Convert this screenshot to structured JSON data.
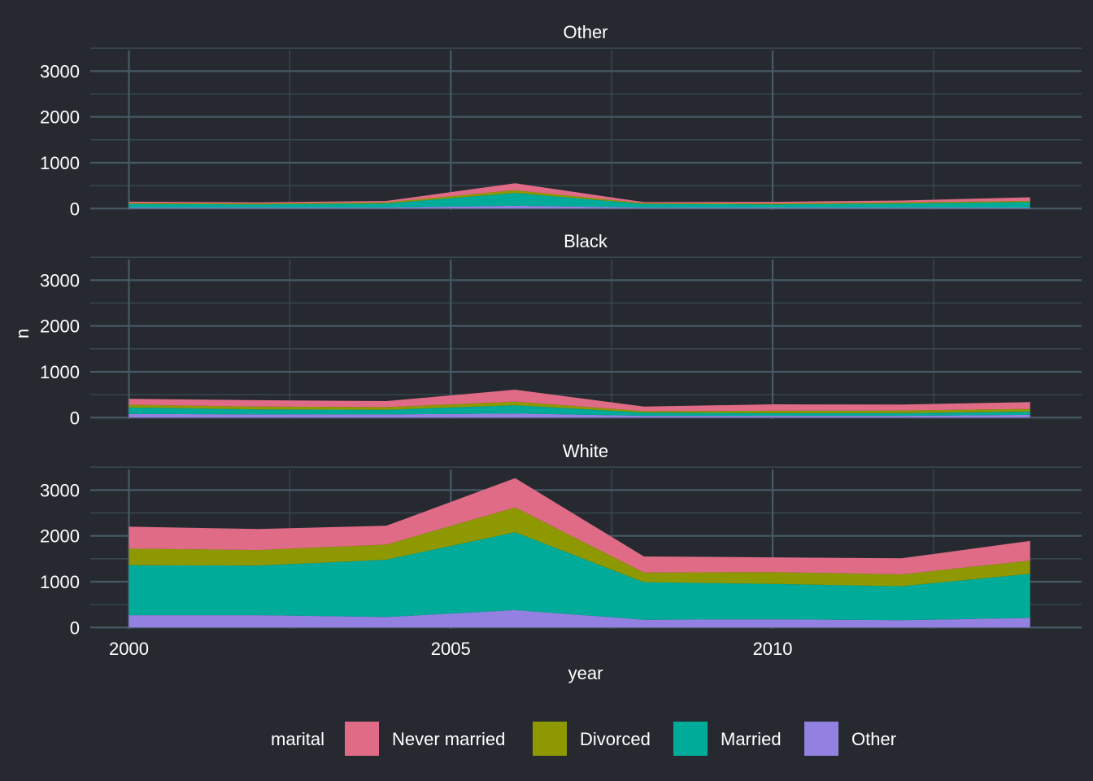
{
  "chart_data": {
    "type": "area",
    "stacked": true,
    "x_label": "year",
    "y_label": "n",
    "x_ticks": [
      2000,
      2005,
      2010
    ],
    "y_ticks": [
      0,
      1000,
      2000,
      3000
    ],
    "xlim": [
      1999.4,
      2014.8
    ],
    "ylim": [
      -30,
      3450
    ],
    "x": [
      2000,
      2002,
      2004,
      2006,
      2008,
      2010,
      2012,
      2014
    ],
    "legend": {
      "title": "marital",
      "position": "bottom",
      "entries": [
        "Never married",
        "Divorced",
        "Married",
        "Other"
      ]
    },
    "stack_order_bottom_to_top": [
      "Other",
      "Married",
      "Divorced",
      "Never married"
    ],
    "colors": {
      "Never married": "#e06b86",
      "Divorced": "#8e9800",
      "Married": "#00ab99",
      "Other": "#9381e1"
    },
    "panels": [
      {
        "title": "Other",
        "series": [
          {
            "name": "Never married",
            "values": [
              30,
              25,
              30,
              150,
              25,
              35,
              40,
              80
            ]
          },
          {
            "name": "Divorced",
            "values": [
              20,
              20,
              25,
              60,
              15,
              20,
              25,
              25
            ]
          },
          {
            "name": "Married",
            "values": [
              80,
              70,
              90,
              280,
              80,
              70,
              90,
              120
            ]
          },
          {
            "name": "Other",
            "values": [
              20,
              20,
              20,
              60,
              20,
              20,
              20,
              20
            ]
          }
        ]
      },
      {
        "title": "Black",
        "series": [
          {
            "name": "Never married",
            "values": [
              130,
              140,
              130,
              260,
              100,
              140,
              130,
              150
            ]
          },
          {
            "name": "Divorced",
            "values": [
              60,
              60,
              60,
              80,
              30,
              50,
              55,
              60
            ]
          },
          {
            "name": "Married",
            "values": [
              140,
              110,
              100,
              180,
              70,
              60,
              60,
              70
            ]
          },
          {
            "name": "Other",
            "values": [
              80,
              70,
              70,
              90,
              40,
              40,
              40,
              60
            ]
          }
        ]
      },
      {
        "title": "White",
        "series": [
          {
            "name": "Never married",
            "values": [
              480,
              460,
              410,
              640,
              350,
              320,
              350,
              430
            ]
          },
          {
            "name": "Divorced",
            "values": [
              360,
              340,
              330,
              540,
              210,
              260,
              260,
              290
            ]
          },
          {
            "name": "Married",
            "values": [
              1090,
              1080,
              1250,
              1700,
              820,
              770,
              740,
              960
            ]
          },
          {
            "name": "Other",
            "values": [
              270,
              270,
              230,
              380,
              170,
              180,
              160,
              210
            ]
          }
        ]
      }
    ]
  }
}
